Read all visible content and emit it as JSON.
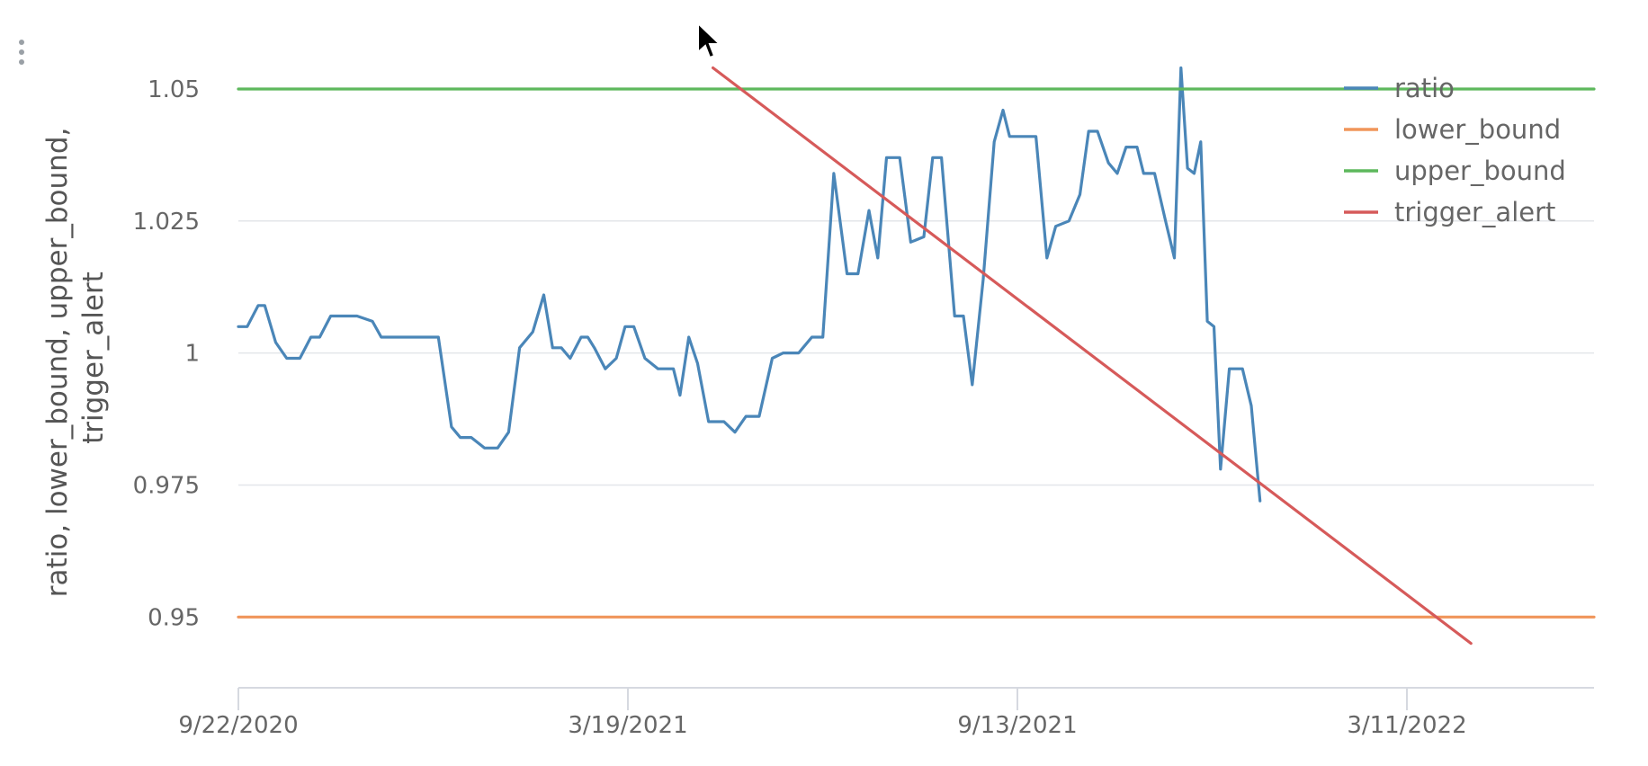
{
  "chart_data": {
    "type": "line",
    "title": "",
    "xlabel": "",
    "ylabel_lines": [
      "ratio, lower_bound, upper_bound,",
      "trigger_alert"
    ],
    "x_ticks": [
      "9/22/2020",
      "3/19/2021",
      "9/13/2021",
      "3/11/2022"
    ],
    "xlim": [
      "2020-09-22",
      "2022-06-01"
    ],
    "ylim": [
      0.94,
      1.058
    ],
    "y_ticks": [
      {
        "value": 0.95,
        "label": "0.95"
      },
      {
        "value": 0.975,
        "label": "0.975"
      },
      {
        "value": 1,
        "label": "1"
      },
      {
        "value": 1.025,
        "label": "1.025"
      },
      {
        "value": 1.05,
        "label": "1.05"
      }
    ],
    "grid": true,
    "legend_position": "top-right",
    "series": [
      {
        "name": "ratio",
        "color": "#4a86b8",
        "points": [
          [
            "2020-09-22",
            1.005
          ],
          [
            "2020-09-26",
            1.005
          ],
          [
            "2020-10-01",
            1.009
          ],
          [
            "2020-10-04",
            1.009
          ],
          [
            "2020-10-09",
            1.002
          ],
          [
            "2020-10-14",
            0.999
          ],
          [
            "2020-10-20",
            0.999
          ],
          [
            "2020-10-25",
            1.003
          ],
          [
            "2020-10-29",
            1.003
          ],
          [
            "2020-11-03",
            1.007
          ],
          [
            "2020-11-10",
            1.007
          ],
          [
            "2020-11-15",
            1.007
          ],
          [
            "2020-11-22",
            1.006
          ],
          [
            "2020-11-26",
            1.003
          ],
          [
            "2020-12-08",
            1.003
          ],
          [
            "2020-12-22",
            1.003
          ],
          [
            "2020-12-28",
            0.986
          ],
          [
            "2021-01-01",
            0.984
          ],
          [
            "2021-01-06",
            0.984
          ],
          [
            "2021-01-12",
            0.982
          ],
          [
            "2021-01-18",
            0.982
          ],
          [
            "2021-01-23",
            0.985
          ],
          [
            "2021-01-28",
            1.001
          ],
          [
            "2021-02-03",
            1.004
          ],
          [
            "2021-02-08",
            1.011
          ],
          [
            "2021-02-12",
            1.001
          ],
          [
            "2021-02-16",
            1.001
          ],
          [
            "2021-02-20",
            0.999
          ],
          [
            "2021-02-25",
            1.003
          ],
          [
            "2021-02-28",
            1.003
          ],
          [
            "2021-03-03",
            1.001
          ],
          [
            "2021-03-08",
            0.997
          ],
          [
            "2021-03-13",
            0.999
          ],
          [
            "2021-03-17",
            1.005
          ],
          [
            "2021-03-21",
            1.005
          ],
          [
            "2021-03-26",
            0.999
          ],
          [
            "2021-04-01",
            0.997
          ],
          [
            "2021-04-08",
            0.997
          ],
          [
            "2021-04-11",
            0.992
          ],
          [
            "2021-04-15",
            1.003
          ],
          [
            "2021-04-19",
            0.998
          ],
          [
            "2021-04-24",
            0.987
          ],
          [
            "2021-05-01",
            0.987
          ],
          [
            "2021-05-06",
            0.985
          ],
          [
            "2021-05-11",
            0.988
          ],
          [
            "2021-05-17",
            0.988
          ],
          [
            "2021-05-23",
            0.999
          ],
          [
            "2021-05-28",
            1.0
          ],
          [
            "2021-06-04",
            1.0
          ],
          [
            "2021-06-10",
            1.003
          ],
          [
            "2021-06-15",
            1.003
          ],
          [
            "2021-06-20",
            1.034
          ],
          [
            "2021-06-26",
            1.015
          ],
          [
            "2021-07-01",
            1.015
          ],
          [
            "2021-07-06",
            1.027
          ],
          [
            "2021-07-10",
            1.018
          ],
          [
            "2021-07-14",
            1.037
          ],
          [
            "2021-07-20",
            1.037
          ],
          [
            "2021-07-25",
            1.021
          ],
          [
            "2021-07-31",
            1.022
          ],
          [
            "2021-08-04",
            1.037
          ],
          [
            "2021-08-08",
            1.037
          ],
          [
            "2021-08-14",
            1.007
          ],
          [
            "2021-08-18",
            1.007
          ],
          [
            "2021-08-22",
            0.994
          ],
          [
            "2021-08-27",
            1.014
          ],
          [
            "2021-09-01",
            1.04
          ],
          [
            "2021-09-05",
            1.046
          ],
          [
            "2021-09-08",
            1.041
          ],
          [
            "2021-09-20",
            1.041
          ],
          [
            "2021-09-25",
            1.018
          ],
          [
            "2021-09-29",
            1.024
          ],
          [
            "2021-10-05",
            1.025
          ],
          [
            "2021-10-10",
            1.03
          ],
          [
            "2021-10-14",
            1.042
          ],
          [
            "2021-10-18",
            1.042
          ],
          [
            "2021-10-23",
            1.036
          ],
          [
            "2021-10-27",
            1.034
          ],
          [
            "2021-10-31",
            1.039
          ],
          [
            "2021-11-05",
            1.039
          ],
          [
            "2021-11-08",
            1.034
          ],
          [
            "2021-11-13",
            1.034
          ],
          [
            "2021-11-18",
            1.025
          ],
          [
            "2021-11-22",
            1.018
          ],
          [
            "2021-11-25",
            1.054
          ],
          [
            "2021-11-28",
            1.035
          ],
          [
            "2021-12-01",
            1.034
          ],
          [
            "2021-12-04",
            1.04
          ],
          [
            "2021-12-07",
            1.006
          ],
          [
            "2021-12-10",
            1.005
          ],
          [
            "2021-12-13",
            0.978
          ],
          [
            "2021-12-17",
            0.997
          ],
          [
            "2021-12-23",
            0.997
          ],
          [
            "2021-12-27",
            0.99
          ],
          [
            "2021-12-31",
            0.972
          ]
        ]
      },
      {
        "name": "lower_bound",
        "color": "#f0955a",
        "points": [
          [
            "2020-09-22",
            0.95
          ],
          [
            "2022-06-01",
            0.95
          ]
        ]
      },
      {
        "name": "upper_bound",
        "color": "#5db85c",
        "points": [
          [
            "2020-09-22",
            1.05
          ],
          [
            "2022-06-01",
            1.05
          ]
        ]
      },
      {
        "name": "trigger_alert",
        "color": "#d65a5a",
        "points": [
          [
            "2021-04-26",
            1.054
          ],
          [
            "2022-04-06",
            0.945
          ]
        ]
      }
    ]
  }
}
